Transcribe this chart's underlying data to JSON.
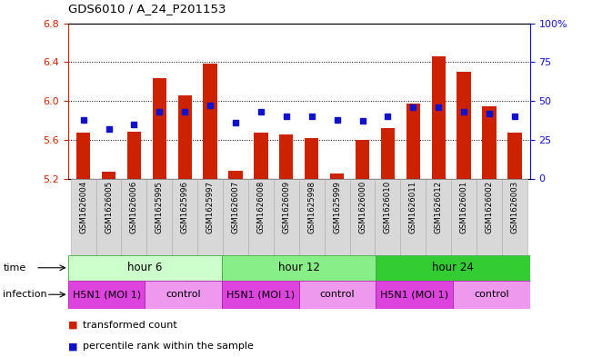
{
  "title": "GDS6010 / A_24_P201153",
  "samples": [
    "GSM1626004",
    "GSM1626005",
    "GSM1626006",
    "GSM1625995",
    "GSM1625996",
    "GSM1625997",
    "GSM1626007",
    "GSM1626008",
    "GSM1626009",
    "GSM1625998",
    "GSM1625999",
    "GSM1626000",
    "GSM1626010",
    "GSM1626011",
    "GSM1626012",
    "GSM1626001",
    "GSM1626002",
    "GSM1626003"
  ],
  "bar_values": [
    5.67,
    5.27,
    5.68,
    6.23,
    6.06,
    6.38,
    5.28,
    5.67,
    5.65,
    5.62,
    5.25,
    5.6,
    5.72,
    5.97,
    6.46,
    6.3,
    5.94,
    5.67
  ],
  "dot_values": [
    38,
    32,
    35,
    43,
    43,
    47,
    36,
    43,
    40,
    40,
    38,
    37,
    40,
    46,
    46,
    43,
    42,
    40
  ],
  "ylim_left": [
    5.2,
    6.8
  ],
  "ylim_right": [
    0,
    100
  ],
  "yticks_left": [
    5.2,
    5.6,
    6.0,
    6.4,
    6.8
  ],
  "ytick_labels_right": [
    "0",
    "25",
    "50",
    "75",
    "100%"
  ],
  "yticks_right": [
    0,
    25,
    50,
    75,
    100
  ],
  "bar_color": "#cc2200",
  "dot_color": "#1111cc",
  "bar_baseline": 5.2,
  "time_groups": [
    {
      "label": "hour 6",
      "start": 0,
      "end": 6,
      "color": "#ccffcc"
    },
    {
      "label": "hour 12",
      "start": 6,
      "end": 12,
      "color": "#88ee88"
    },
    {
      "label": "hour 24",
      "start": 12,
      "end": 18,
      "color": "#33cc33"
    }
  ],
  "infection_groups": [
    {
      "label": "H5N1 (MOI 1)",
      "start": 0,
      "end": 3,
      "color": "#dd55dd"
    },
    {
      "label": "control",
      "start": 3,
      "end": 6,
      "color": "#ee99ee"
    },
    {
      "label": "H5N1 (MOI 1)",
      "start": 6,
      "end": 9,
      "color": "#dd55dd"
    },
    {
      "label": "control",
      "start": 9,
      "end": 12,
      "color": "#ee99ee"
    },
    {
      "label": "H5N1 (MOI 1)",
      "start": 12,
      "end": 15,
      "color": "#dd55dd"
    },
    {
      "label": "control",
      "start": 15,
      "end": 18,
      "color": "#ee99ee"
    }
  ]
}
